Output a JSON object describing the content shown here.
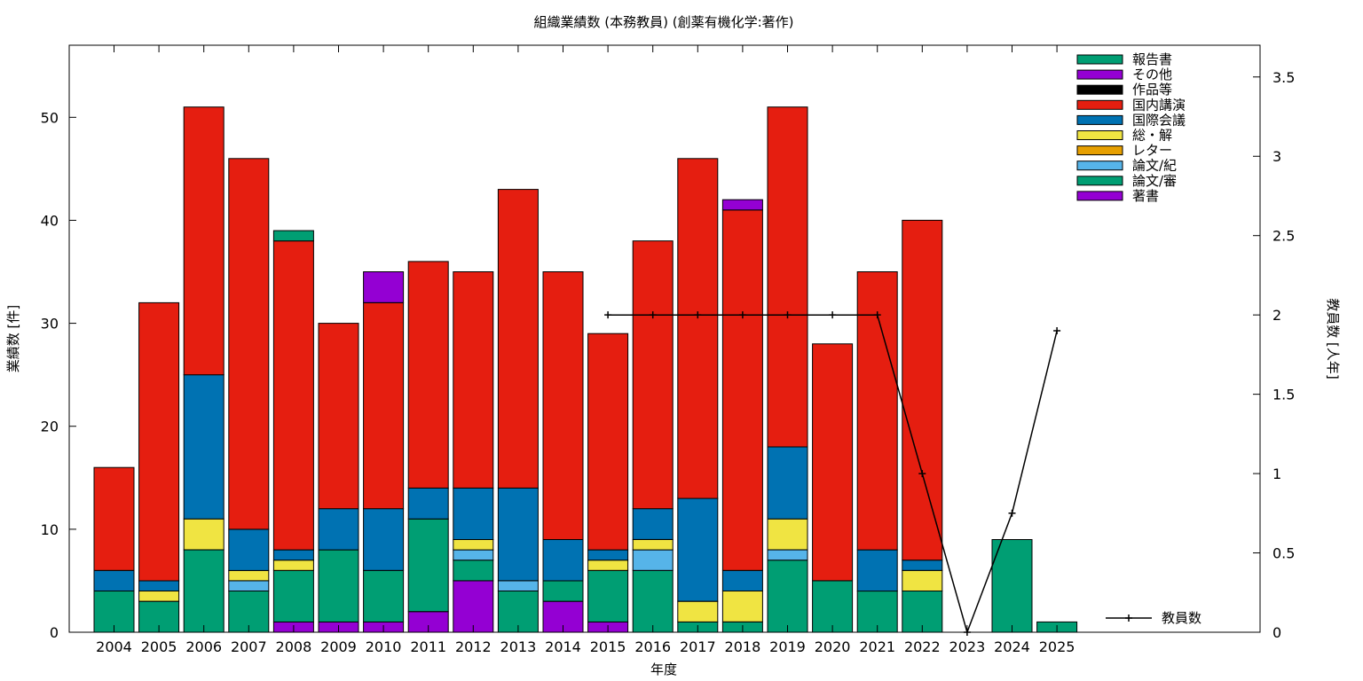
{
  "chart_data": {
    "type": "bar",
    "stacked": true,
    "title": "組織業績数 (本務教員) (創薬有機化学:著作)",
    "xlabel": "年度",
    "ylabel": "業績数 [件]",
    "y2label": "教員数 [人年]",
    "ylim": [
      0,
      57
    ],
    "y2lim": [
      0,
      3.7
    ],
    "yticks": [
      0,
      10,
      20,
      30,
      40,
      50
    ],
    "y2ticks": [
      "0",
      "0.5",
      "1",
      "1.5",
      "2",
      "2.5",
      "3",
      "3.5"
    ],
    "grid": false,
    "legend_position": "top-right",
    "categories": [
      "2004",
      "2005",
      "2006",
      "2007",
      "2008",
      "2009",
      "2010",
      "2011",
      "2012",
      "2013",
      "2014",
      "2015",
      "2016",
      "2017",
      "2018",
      "2019",
      "2020",
      "2021",
      "2022",
      "2023",
      "2024",
      "2025"
    ],
    "series": [
      {
        "name": "著書",
        "color": "#9400d3",
        "values": [
          0,
          0,
          0,
          0,
          1,
          1,
          1,
          2,
          5,
          0,
          3,
          1,
          0,
          0,
          0,
          0,
          0,
          0,
          0,
          0,
          0,
          0
        ]
      },
      {
        "name": "論文/審",
        "color": "#009e73",
        "values": [
          4,
          3,
          8,
          4,
          5,
          7,
          5,
          9,
          2,
          4,
          2,
          5,
          6,
          1,
          1,
          7,
          5,
          4,
          4,
          0,
          0,
          0
        ]
      },
      {
        "name": "論文/紀",
        "color": "#56b4e9",
        "values": [
          0,
          0,
          0,
          1,
          0,
          0,
          0,
          0,
          1,
          1,
          0,
          0,
          2,
          0,
          0,
          1,
          0,
          0,
          0,
          0,
          0,
          0
        ]
      },
      {
        "name": "レター",
        "color": "#e69f00",
        "values": [
          0,
          0,
          0,
          0,
          0,
          0,
          0,
          0,
          0,
          0,
          0,
          0,
          0,
          0,
          0,
          0,
          0,
          0,
          0,
          0,
          0,
          0
        ]
      },
      {
        "name": "総・解",
        "color": "#f0e442",
        "values": [
          0,
          1,
          3,
          1,
          1,
          0,
          0,
          0,
          1,
          0,
          0,
          1,
          1,
          2,
          3,
          3,
          0,
          0,
          2,
          0,
          0,
          0
        ]
      },
      {
        "name": "国際会議",
        "color": "#0072b2",
        "values": [
          2,
          1,
          14,
          4,
          1,
          4,
          6,
          3,
          5,
          9,
          4,
          1,
          3,
          10,
          2,
          7,
          0,
          4,
          1,
          0,
          0,
          0
        ]
      },
      {
        "name": "国内講演",
        "color": "#e51e10",
        "values": [
          10,
          27,
          26,
          36,
          30,
          18,
          20,
          22,
          21,
          29,
          26,
          21,
          26,
          33,
          35,
          33,
          23,
          27,
          33,
          0,
          0,
          0
        ]
      },
      {
        "name": "作品等",
        "color": "#000000",
        "values": [
          0,
          0,
          0,
          0,
          0,
          0,
          0,
          0,
          0,
          0,
          0,
          0,
          0,
          0,
          0,
          0,
          0,
          0,
          0,
          0,
          0,
          0
        ]
      },
      {
        "name": "その他",
        "color": "#9400d3",
        "values": [
          0,
          0,
          0,
          0,
          0,
          0,
          3,
          0,
          0,
          0,
          0,
          0,
          0,
          0,
          1,
          0,
          0,
          0,
          0,
          0,
          0,
          0
        ]
      },
      {
        "name": "報告書",
        "color": "#009e73",
        "values": [
          0,
          0,
          0,
          0,
          1,
          0,
          0,
          0,
          0,
          0,
          0,
          0,
          0,
          0,
          0,
          0,
          0,
          0,
          0,
          0,
          9,
          1
        ]
      }
    ],
    "line_series": {
      "name": "教員数",
      "color": "#000000",
      "x": [
        "2015",
        "2016",
        "2017",
        "2018",
        "2019",
        "2020",
        "2021",
        "2022",
        "2023",
        "2024",
        "2025"
      ],
      "values": [
        2,
        2,
        2,
        2,
        2,
        2,
        2,
        1,
        0,
        0.75,
        1.9
      ]
    }
  }
}
